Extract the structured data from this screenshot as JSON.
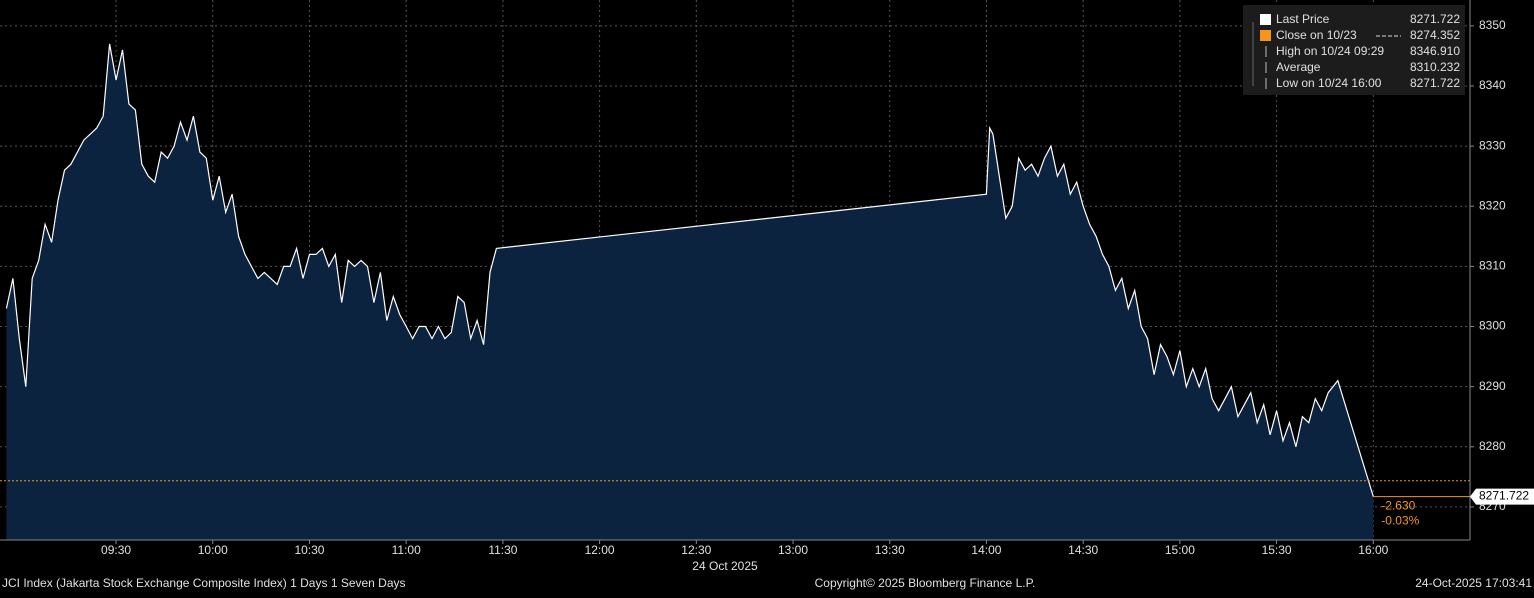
{
  "chart_data": {
    "type": "area-line",
    "color": "#ffffff",
    "fill": "#0c2340",
    "x": [
      536,
      538,
      540,
      542,
      544,
      546,
      548,
      550,
      552,
      554,
      556,
      558,
      560,
      562,
      564,
      566,
      568,
      570,
      572,
      574,
      576,
      578,
      580,
      582,
      584,
      586,
      588,
      590,
      592,
      594,
      596,
      598,
      600,
      602,
      604,
      606,
      608,
      610,
      612,
      614,
      616,
      618,
      620,
      622,
      624,
      626,
      628,
      630,
      632,
      634,
      636,
      638,
      640,
      642,
      644,
      646,
      648,
      650,
      652,
      654,
      656,
      658,
      660,
      662,
      664,
      666,
      668,
      670,
      672,
      674,
      676,
      678,
      680,
      682,
      684,
      686,
      688,
      840,
      841,
      842,
      844,
      846,
      848,
      850,
      852,
      854,
      856,
      858,
      860,
      862,
      864,
      866,
      868,
      870,
      872,
      874,
      876,
      878,
      880,
      882,
      884,
      886,
      888,
      890,
      892,
      894,
      896,
      898,
      900,
      902,
      904,
      906,
      908,
      910,
      912,
      914,
      916,
      918,
      920,
      922,
      924,
      926,
      928,
      930,
      932,
      934,
      936,
      938,
      940,
      942,
      944,
      946,
      949,
      960
    ],
    "values": [
      8303,
      8308,
      8298,
      8290,
      8308,
      8311,
      8317,
      8314,
      8321,
      8326,
      8327,
      8329,
      8331,
      8332,
      8333,
      8335,
      8347,
      8341,
      8346,
      8337,
      8336,
      8327,
      8325,
      8324,
      8329,
      8328,
      8330,
      8334,
      8331,
      8335,
      8329,
      8328,
      8321,
      8325,
      8319,
      8322,
      8315,
      8312,
      8310,
      8308,
      8309,
      8308,
      8307,
      8310,
      8310,
      8313,
      8308,
      8312,
      8312,
      8313,
      8310,
      8312,
      8304,
      8311,
      8310,
      8311,
      8310,
      8304,
      8309,
      8301,
      8305,
      8302,
      8300,
      8298,
      8300,
      8300,
      8298,
      8300,
      8298,
      8299,
      8305,
      8304,
      8298,
      8301,
      8297,
      8309,
      8313,
      8322,
      8333,
      8332,
      8325,
      8318,
      8320,
      8328,
      8326,
      8327,
      8325,
      8328,
      8330,
      8325,
      8327,
      8322,
      8324,
      8320,
      8317,
      8315,
      8312,
      8310,
      8306,
      8308,
      8303,
      8306,
      8300,
      8298,
      8292,
      8297,
      8295,
      8292,
      8296,
      8290,
      8293,
      8290,
      8293,
      8288,
      8286,
      8288,
      8290,
      8285,
      8287,
      8289,
      8284,
      8287,
      8282,
      8286,
      8281,
      8284,
      8280,
      8285,
      8284,
      8288,
      8286,
      8289,
      8291,
      8271.722
    ],
    "xlim": [
      534,
      990
    ],
    "ylim": [
      8264.5,
      8354.3
    ],
    "xticks": [
      {
        "value": 570,
        "label": "09:30"
      },
      {
        "value": 600,
        "label": "10:00"
      },
      {
        "value": 630,
        "label": "10:30"
      },
      {
        "value": 660,
        "label": "11:00"
      },
      {
        "value": 690,
        "label": "11:30"
      },
      {
        "value": 720,
        "label": "12:00"
      },
      {
        "value": 750,
        "label": "12:30"
      },
      {
        "value": 780,
        "label": "13:00"
      },
      {
        "value": 810,
        "label": "13:30"
      },
      {
        "value": 840,
        "label": "14:00"
      },
      {
        "value": 870,
        "label": "14:30"
      },
      {
        "value": 900,
        "label": "15:00"
      },
      {
        "value": 930,
        "label": "15:30"
      },
      {
        "value": 960,
        "label": "16:00"
      }
    ],
    "yticks": [
      8270,
      8280,
      8290,
      8300,
      8310,
      8320,
      8330,
      8340,
      8350
    ],
    "grid": true,
    "x_date": "24 Oct 2025",
    "stats": [
      {
        "name": "Last Price",
        "value": 8271.722,
        "color": "#ffffff"
      },
      {
        "name": "Close on 10/23",
        "value": 8274.352,
        "color": "#f7941d"
      },
      {
        "name": "High on 10/24 09:29",
        "value": 8346.91,
        "value_label": "8346.910",
        "color": "#bbbbbb"
      },
      {
        "name": "Average",
        "value": 8310.232,
        "color": "#bbbbbb"
      },
      {
        "name": "Low on 10/24 16:00",
        "value": 8271.722,
        "color": "#bbbbbb"
      }
    ],
    "change": {
      "value": -2.63,
      "label": "-2.630"
    },
    "change_pct": {
      "value": -0.03,
      "label": "-0.03%"
    },
    "footer": {
      "left": "JCI Index (Jakarta Stock Exchange Composite Index) 1 Days 1 Seven Days",
      "center": "Copyright© 2025 Bloomberg Finance L.P.",
      "right": "24-Oct-2025 17:03:41"
    }
  }
}
